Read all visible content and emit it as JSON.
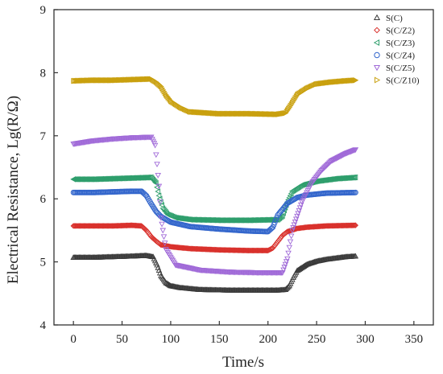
{
  "chart_data": {
    "type": "scatter",
    "title": "",
    "xlabel": "Time/s",
    "ylabel": "Electrical Resistance,  Lg(R/Ω)",
    "xlim": [
      -20,
      370
    ],
    "ylim": [
      4,
      9
    ],
    "xticks": [
      0,
      50,
      100,
      150,
      200,
      250,
      300,
      350
    ],
    "yticks": [
      4,
      5,
      6,
      7,
      8,
      9
    ],
    "grid": false,
    "legend_position": "top-right",
    "series": [
      {
        "name": "S(C)",
        "color": "#3a3a3a",
        "marker": "triangle-up",
        "x": [
          0,
          20,
          40,
          60,
          75,
          82,
          86,
          90,
          95,
          100,
          110,
          130,
          160,
          190,
          210,
          218,
          222,
          226,
          230,
          240,
          250,
          260,
          270,
          280,
          290
        ],
        "y": [
          5.07,
          5.07,
          5.08,
          5.09,
          5.1,
          5.08,
          4.95,
          4.78,
          4.67,
          4.62,
          4.59,
          4.56,
          4.55,
          4.55,
          4.55,
          4.56,
          4.62,
          4.75,
          4.86,
          4.96,
          5.01,
          5.04,
          5.06,
          5.08,
          5.09
        ]
      },
      {
        "name": "S(C/Z2)",
        "color": "#d9312c",
        "marker": "diamond",
        "x": [
          0,
          20,
          40,
          60,
          70,
          75,
          80,
          85,
          90,
          100,
          120,
          150,
          180,
          200,
          205,
          210,
          215,
          220,
          230,
          240,
          260,
          290
        ],
        "y": [
          5.57,
          5.57,
          5.57,
          5.58,
          5.57,
          5.5,
          5.4,
          5.33,
          5.27,
          5.24,
          5.21,
          5.19,
          5.18,
          5.18,
          5.22,
          5.32,
          5.42,
          5.48,
          5.53,
          5.55,
          5.57,
          5.58
        ]
      },
      {
        "name": "S(C/Z3)",
        "color": "#2e9e6c",
        "marker": "triangle-left",
        "x": [
          0,
          20,
          40,
          60,
          80,
          85,
          88,
          92,
          97,
          105,
          120,
          150,
          180,
          210,
          215,
          220,
          225,
          235,
          250,
          270,
          290
        ],
        "y": [
          6.31,
          6.31,
          6.32,
          6.33,
          6.34,
          6.25,
          6.05,
          5.85,
          5.75,
          5.7,
          5.67,
          5.66,
          5.66,
          5.67,
          5.73,
          5.95,
          6.12,
          6.22,
          6.28,
          6.32,
          6.34
        ]
      },
      {
        "name": "S(C/Z4)",
        "color": "#3366cc",
        "marker": "circle",
        "x": [
          0,
          20,
          40,
          60,
          70,
          75,
          80,
          85,
          90,
          100,
          120,
          150,
          180,
          200,
          205,
          210,
          220,
          230,
          240,
          260,
          290
        ],
        "y": [
          6.1,
          6.1,
          6.11,
          6.12,
          6.12,
          6.05,
          5.92,
          5.8,
          5.72,
          5.63,
          5.56,
          5.52,
          5.49,
          5.48,
          5.55,
          5.74,
          5.93,
          6.02,
          6.06,
          6.09,
          6.1
        ]
      },
      {
        "name": "S(C/Z5)",
        "color": "#a06ad8",
        "marker": "triangle-down",
        "x": [
          0,
          20,
          40,
          60,
          80,
          84,
          86,
          88,
          90,
          95,
          105,
          130,
          160,
          190,
          215,
          220,
          225,
          235,
          245,
          255,
          265,
          280,
          290
        ],
        "y": [
          6.87,
          6.92,
          6.95,
          6.97,
          6.98,
          6.85,
          6.55,
          6.2,
          5.7,
          5.2,
          4.95,
          4.87,
          4.84,
          4.83,
          4.83,
          5.05,
          5.5,
          5.95,
          6.25,
          6.45,
          6.6,
          6.72,
          6.78
        ]
      },
      {
        "name": "S(C/Z10)",
        "color": "#c9a00e",
        "marker": "triangle-right",
        "x": [
          0,
          20,
          40,
          60,
          80,
          85,
          90,
          95,
          100,
          110,
          120,
          150,
          180,
          210,
          218,
          222,
          226,
          230,
          240,
          250,
          265,
          280,
          290
        ],
        "y": [
          7.87,
          7.88,
          7.88,
          7.89,
          7.9,
          7.85,
          7.78,
          7.65,
          7.55,
          7.45,
          7.38,
          7.35,
          7.35,
          7.34,
          7.36,
          7.45,
          7.55,
          7.65,
          7.75,
          7.82,
          7.85,
          7.87,
          7.88
        ]
      }
    ]
  }
}
